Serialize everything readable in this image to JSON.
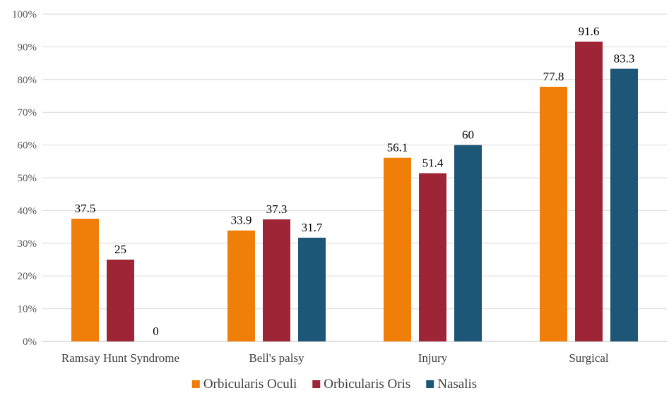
{
  "chart_data": {
    "type": "bar",
    "categories": [
      "Ramsay Hunt Syndrome",
      "Bell's palsy",
      "Injury",
      "Surgical"
    ],
    "series": [
      {
        "name": "Orbicularis Oculi",
        "color": "#f07f09",
        "values": [
          37.5,
          33.9,
          56.1,
          77.8
        ],
        "labels": [
          "37.5",
          "33.9",
          "56.1",
          "77.8"
        ]
      },
      {
        "name": "Orbicularis Oris",
        "color": "#9e2536",
        "values": [
          25,
          37.3,
          51.4,
          91.6
        ],
        "labels": [
          "25",
          "37.3",
          "51.4",
          "91.6"
        ]
      },
      {
        "name": "Nasalis",
        "color": "#1d5677",
        "values": [
          0,
          31.7,
          60,
          83.3
        ],
        "labels": [
          "0",
          "31.7",
          "60",
          "83.3"
        ]
      }
    ],
    "yticks": [
      "0%",
      "10%",
      "20%",
      "30%",
      "40%",
      "50%",
      "60%",
      "70%",
      "80%",
      "90%",
      "100%"
    ],
    "ylim": [
      0,
      100
    ],
    "grid": true,
    "legend_position": "bottom"
  }
}
